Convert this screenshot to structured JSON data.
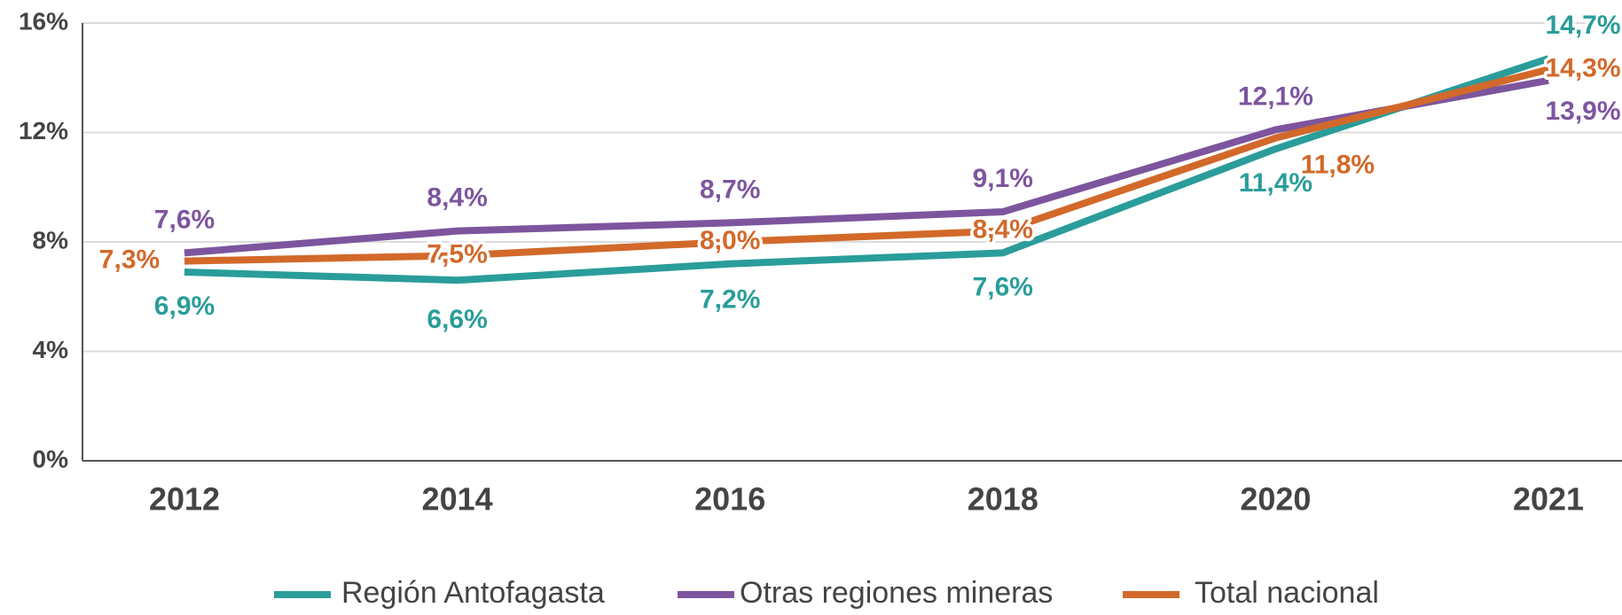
{
  "chart_data": {
    "type": "line",
    "categories": [
      "2012",
      "2014",
      "2016",
      "2018",
      "2020",
      "2021"
    ],
    "series": [
      {
        "name": "Región Antofagasta",
        "color": "#2a9d9a",
        "values": [
          6.9,
          6.6,
          7.2,
          7.6,
          11.4,
          14.7
        ],
        "value_labels": [
          "6,9%",
          "6,6%",
          "7,2%",
          "7,6%",
          "11,4%",
          "14,7%"
        ]
      },
      {
        "name": "Otras regiones mineras",
        "color": "#7d559e",
        "values": [
          7.6,
          8.4,
          8.7,
          9.1,
          12.1,
          13.9
        ],
        "value_labels": [
          "7,6%",
          "8,4%",
          "8,7%",
          "9,1%",
          "12,1%",
          "13,9%"
        ]
      },
      {
        "name": "Total nacional",
        "color": "#d2692a",
        "values": [
          7.3,
          7.5,
          8.0,
          8.4,
          11.8,
          14.3
        ],
        "value_labels": [
          "7,3%",
          "7,5%",
          "8,0%",
          "8,4%",
          "11,8%",
          "14,3%"
        ]
      }
    ],
    "ylim": [
      0,
      16
    ],
    "yticks": [
      {
        "value": 0,
        "label": "0%"
      },
      {
        "value": 4,
        "label": "4%"
      },
      {
        "value": 8,
        "label": "8%"
      },
      {
        "value": 12,
        "label": "12%"
      },
      {
        "value": 16,
        "label": "16%"
      }
    ],
    "grid": true,
    "legend": "bottom"
  }
}
